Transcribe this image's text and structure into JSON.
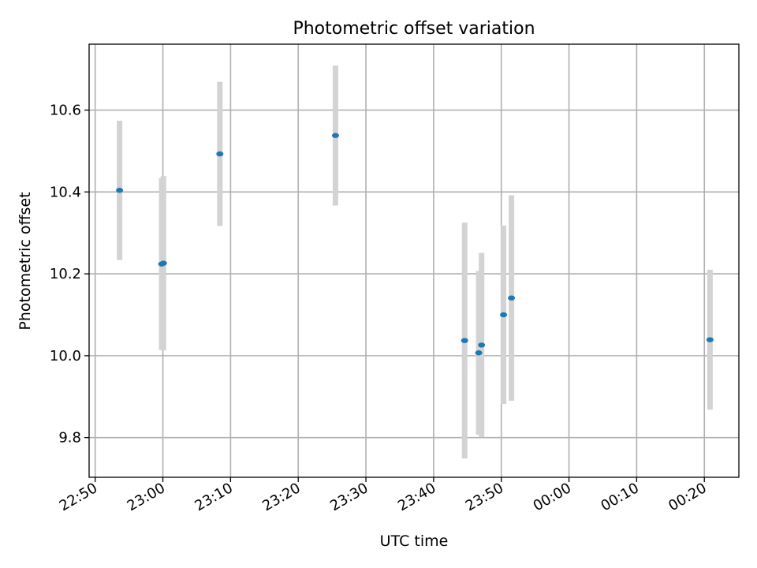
{
  "chart_data": {
    "type": "scatter",
    "title": "Photometric offset variation",
    "xlabel": "UTC time",
    "ylabel": "Photometric offset",
    "x_tick_labels": [
      "22:50",
      "23:00",
      "23:10",
      "23:20",
      "23:30",
      "23:40",
      "23:50",
      "00:00",
      "00:10",
      "00:20"
    ],
    "y_tick_labels": [
      "9.8",
      "10.0",
      "10.2",
      "10.4",
      "10.6"
    ],
    "x_ticks_minutes": [
      0,
      10,
      20,
      30,
      40,
      50,
      60,
      70,
      80,
      90
    ],
    "y_ticks": [
      9.8,
      10.0,
      10.2,
      10.4,
      10.6
    ],
    "xlim_minutes": [
      -0.9,
      95.1
    ],
    "ylim": [
      9.703,
      10.761
    ],
    "grid": true,
    "marker_color": "#1f77b4",
    "errorbar_color": "#d3d3d3",
    "points": [
      {
        "time": "22:53:36",
        "y": 10.404,
        "err": 0.17
      },
      {
        "time": "22:59:50",
        "y": 10.224,
        "err": 0.21
      },
      {
        "time": "23:00:05",
        "y": 10.226,
        "err": 0.213
      },
      {
        "time": "23:08:25",
        "y": 10.493,
        "err": 0.176
      },
      {
        "time": "23:25:30",
        "y": 10.538,
        "err": 0.171
      },
      {
        "time": "23:44:35",
        "y": 10.037,
        "err": 0.288
      },
      {
        "time": "23:46:40",
        "y": 10.007,
        "err": 0.2
      },
      {
        "time": "23:47:05",
        "y": 10.026,
        "err": 0.225
      },
      {
        "time": "23:50:20",
        "y": 10.1,
        "err": 0.218
      },
      {
        "time": "23:51:30",
        "y": 10.141,
        "err": 0.251
      },
      {
        "time": "00:20:50",
        "y": 10.039,
        "err": 0.171
      }
    ]
  }
}
